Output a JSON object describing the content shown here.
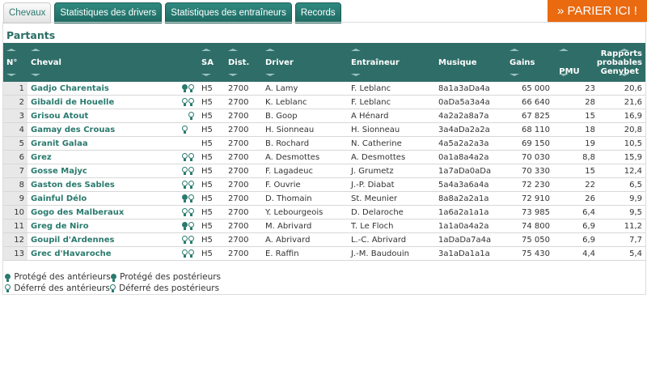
{
  "tabs": [
    {
      "label": "Chevaux",
      "active": true
    },
    {
      "label": "Statistiques des drivers"
    },
    {
      "label": "Statistiques des entraîneurs"
    },
    {
      "label": "Records"
    }
  ],
  "bet_button": "» PARIER ICI !",
  "section_title": "Partants",
  "headers": {
    "num": "N°",
    "cheval": "Cheval",
    "sa": "SA",
    "dist": "Dist.",
    "driver": "Driver",
    "entraineur": "Entraîneur",
    "musique": "Musique",
    "gains": "Gains",
    "rapports": "Rapports probables",
    "pmu": "PMU",
    "genybet": "Genybet"
  },
  "rows": [
    {
      "num": "1",
      "cheval": "Gadjo Charentais",
      "shoes": [
        "protege",
        "deferre"
      ],
      "sa": "H5",
      "dist": "2700",
      "driver": "A. Lamy",
      "entraineur": "F. Leblanc",
      "musique": "8a1a3aDa4a",
      "gains": "65 000",
      "pmu": "23",
      "genybet": "20,6"
    },
    {
      "num": "2",
      "cheval": "Gibaldi de Houelle",
      "shoes": [
        "deferre",
        "deferre"
      ],
      "sa": "H5",
      "dist": "2700",
      "driver": "K. Leblanc",
      "entraineur": "F. Leblanc",
      "musique": "0aDa5a3a4a",
      "gains": "66 640",
      "pmu": "28",
      "genybet": "21,6"
    },
    {
      "num": "3",
      "cheval": "Grisou Atout",
      "shoes": [
        null,
        "deferre"
      ],
      "sa": "H5",
      "dist": "2700",
      "driver": "B. Goop",
      "entraineur": "A Hénard",
      "musique": "4a2a2a8a7a",
      "gains": "67 825",
      "pmu": "15",
      "genybet": "16,9"
    },
    {
      "num": "4",
      "cheval": "Gamay des Crouas",
      "shoes": [
        "deferre",
        null
      ],
      "sa": "H5",
      "dist": "2700",
      "driver": "H. Sionneau",
      "entraineur": "H. Sionneau",
      "musique": "3a4aDa2a2a",
      "gains": "68 110",
      "pmu": "18",
      "genybet": "20,8"
    },
    {
      "num": "5",
      "cheval": "Granit Galaa",
      "shoes": [
        null,
        null
      ],
      "sa": "H5",
      "dist": "2700",
      "driver": "B. Rochard",
      "entraineur": "N. Catherine",
      "musique": "4a5a2a2a3a",
      "gains": "69 150",
      "pmu": "19",
      "genybet": "10,5"
    },
    {
      "num": "6",
      "cheval": "Grez",
      "shoes": [
        "deferre",
        "deferre"
      ],
      "sa": "H5",
      "dist": "2700",
      "driver": "A. Desmottes",
      "entraineur": "A. Desmottes",
      "musique": "0a1a8a4a2a",
      "gains": "70 030",
      "pmu": "8,8",
      "genybet": "15,9"
    },
    {
      "num": "7",
      "cheval": "Gosse Majyc",
      "shoes": [
        "deferre",
        "deferre"
      ],
      "sa": "H5",
      "dist": "2700",
      "driver": "F. Lagadeuc",
      "entraineur": "J. Grumetz",
      "musique": "1a7aDa0aDa",
      "gains": "70 330",
      "pmu": "15",
      "genybet": "12,4"
    },
    {
      "num": "8",
      "cheval": "Gaston des Sables",
      "shoes": [
        "deferre",
        "deferre"
      ],
      "sa": "H5",
      "dist": "2700",
      "driver": "F. Ouvrie",
      "entraineur": "J.-P. Diabat",
      "musique": "5a4a3a6a4a",
      "gains": "72 230",
      "pmu": "22",
      "genybet": "6,5"
    },
    {
      "num": "9",
      "cheval": "Gainful Délo",
      "shoes": [
        "protege",
        "deferre"
      ],
      "sa": "H5",
      "dist": "2700",
      "driver": "D. Thomain",
      "entraineur": "St. Meunier",
      "musique": "8a8a2a2a1a",
      "gains": "72 910",
      "pmu": "26",
      "genybet": "9,9"
    },
    {
      "num": "10",
      "cheval": "Gogo des Malberaux",
      "shoes": [
        "deferre",
        "deferre"
      ],
      "sa": "H5",
      "dist": "2700",
      "driver": "Y. Lebourgeois",
      "entraineur": "D. Delaroche",
      "musique": "1a6a2a1a1a",
      "gains": "73 985",
      "pmu": "6,4",
      "genybet": "9,5"
    },
    {
      "num": "11",
      "cheval": "Greg de Niro",
      "shoes": [
        "protege",
        "deferre"
      ],
      "sa": "H5",
      "dist": "2700",
      "driver": "M. Abrivard",
      "entraineur": "T. Le Floch",
      "musique": "1a1a0a4a2a",
      "gains": "74 800",
      "pmu": "6,9",
      "genybet": "11,2"
    },
    {
      "num": "12",
      "cheval": "Goupil d'Ardennes",
      "shoes": [
        "deferre",
        "deferre"
      ],
      "sa": "H5",
      "dist": "2700",
      "driver": "A. Abrivard",
      "entraineur": "L.-C. Abrivard",
      "musique": "1aDaDa7a4a",
      "gains": "75 050",
      "pmu": "6,9",
      "genybet": "7,7"
    },
    {
      "num": "13",
      "cheval": "Grec d'Havaroche",
      "shoes": [
        "deferre",
        "deferre"
      ],
      "sa": "H5",
      "dist": "2700",
      "driver": "E. Raffin",
      "entraineur": "J.-M. Baudouin",
      "musique": "3a1aDa1a1a",
      "gains": "75 430",
      "pmu": "4,4",
      "genybet": "5,4"
    }
  ],
  "legend": {
    "protege_ant": "Protégé des antérieurs",
    "protege_post": "Protégé des postérieurs",
    "deferre_ant": "Déferré des antérieurs",
    "deferre_post": "Déferré des postérieurs"
  },
  "colors": {
    "header": "#2f6d68",
    "accent": "#2a7a6e",
    "bet": "#ea6a10"
  }
}
